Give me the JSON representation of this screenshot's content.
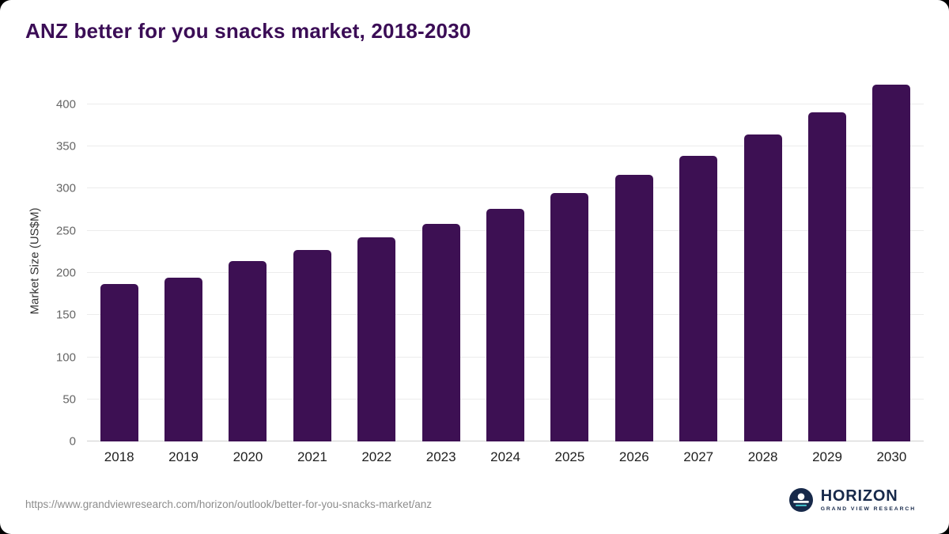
{
  "title": "ANZ better for you snacks market, 2018-2030",
  "colors": {
    "bar": "#3d1053",
    "title": "#3b0d56",
    "gridline": "#ececec",
    "axis_line": "#cfcfcf",
    "logo_navy": "#17294a",
    "logo_teal": "#46c5cf"
  },
  "chart_data": {
    "type": "bar",
    "title": "ANZ better for you snacks market, 2018-2030",
    "categories": [
      "2018",
      "2019",
      "2020",
      "2021",
      "2022",
      "2023",
      "2024",
      "2025",
      "2026",
      "2027",
      "2028",
      "2029",
      "2030"
    ],
    "values": [
      187,
      194,
      214,
      227,
      242,
      258,
      276,
      295,
      316,
      339,
      364,
      391,
      423
    ],
    "xlabel": "",
    "ylabel": "Market Size (US$M)",
    "ylim": [
      0,
      430
    ],
    "yticks": [
      0,
      50,
      100,
      150,
      200,
      250,
      300,
      350,
      400
    ],
    "grid": "horizontal",
    "legend": "none"
  },
  "footer": {
    "source_url": "https://www.grandviewresearch.com/horizon/outlook/better-for-you-snacks-market/anz"
  },
  "logo": {
    "name": "HORIZON",
    "subtitle": "GRAND VIEW RESEARCH"
  }
}
